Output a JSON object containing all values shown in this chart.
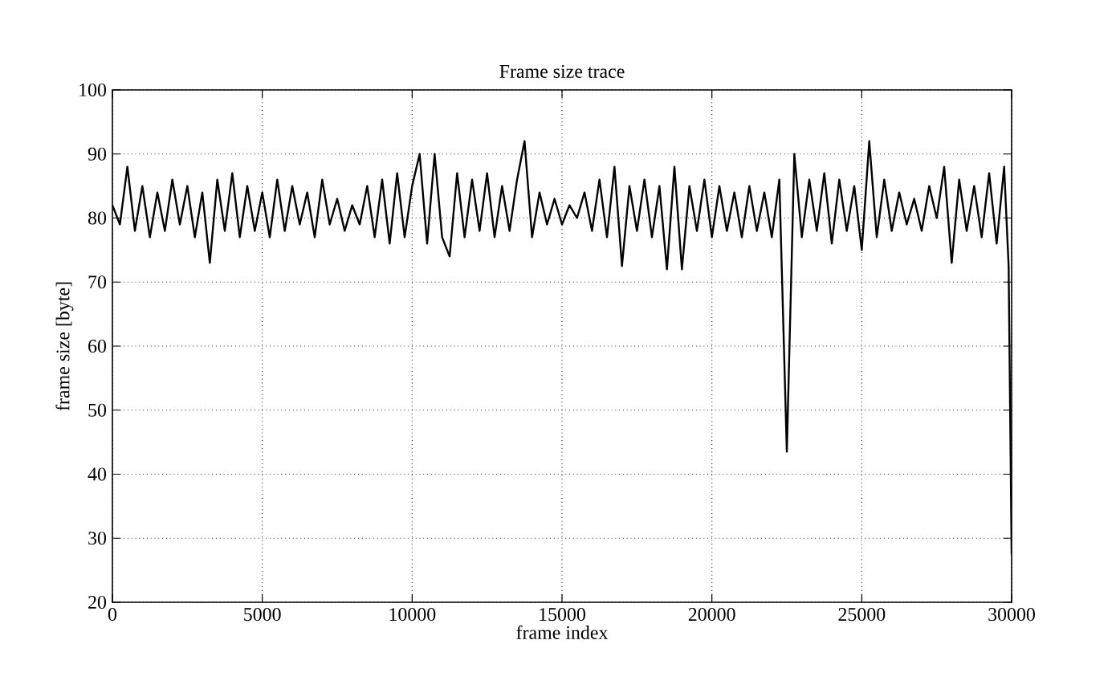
{
  "chart_data": {
    "type": "line",
    "title": "Frame size trace",
    "xlabel": "frame index",
    "ylabel": "frame size [byte]",
    "xlim": [
      0,
      30000
    ],
    "xticks": [
      0,
      5000,
      10000,
      15000,
      20000,
      25000,
      30000
    ],
    "ylim": [
      20,
      100
    ],
    "yticks": [
      20,
      30,
      40,
      50,
      60,
      70,
      80,
      90,
      100
    ],
    "grid": true,
    "marker": "none",
    "line_style": "solid",
    "x": [
      0,
      250,
      500,
      750,
      1000,
      1250,
      1500,
      1750,
      2000,
      2250,
      2500,
      2750,
      3000,
      3250,
      3500,
      3750,
      4000,
      4250,
      4500,
      4750,
      5000,
      5250,
      5500,
      5750,
      6000,
      6250,
      6500,
      6750,
      7000,
      7250,
      7500,
      7750,
      8000,
      8250,
      8500,
      8750,
      9000,
      9250,
      9500,
      9750,
      10000,
      10250,
      10500,
      10750,
      11000,
      11250,
      11500,
      11750,
      12000,
      12250,
      12500,
      12750,
      13000,
      13250,
      13500,
      13750,
      14000,
      14250,
      14500,
      14750,
      15000,
      15250,
      15500,
      15750,
      16000,
      16250,
      16500,
      16750,
      17000,
      17250,
      17500,
      17750,
      18000,
      18250,
      18500,
      18750,
      19000,
      19250,
      19500,
      19750,
      20000,
      20250,
      20500,
      20750,
      21000,
      21250,
      21500,
      21750,
      22000,
      22250,
      22500,
      22750,
      23000,
      23250,
      23500,
      23750,
      24000,
      24250,
      24500,
      24750,
      25000,
      25250,
      25500,
      25750,
      26000,
      26250,
      26500,
      26750,
      27000,
      27250,
      27500,
      27750,
      28000,
      28250,
      28500,
      28750,
      29000,
      29250,
      29500,
      29750,
      29900,
      30000
    ],
    "series": [
      {
        "color": "#000000",
        "values": [
          82,
          79,
          88,
          78,
          85,
          77,
          84,
          78,
          86,
          79,
          85,
          77,
          84,
          73,
          86,
          78,
          87,
          77,
          85,
          78,
          84,
          77,
          86,
          78,
          85,
          79,
          84,
          77,
          86,
          79,
          83,
          78,
          82,
          79,
          85,
          77,
          86,
          76,
          87,
          77,
          85,
          90,
          76,
          90,
          77,
          74,
          87,
          77,
          86,
          78,
          87,
          77,
          85,
          78,
          86,
          92,
          77,
          84,
          79,
          83,
          79,
          82,
          80,
          84,
          78,
          86,
          77,
          88,
          72.5,
          85,
          78,
          86,
          77,
          85,
          72,
          88,
          72,
          85,
          78,
          86,
          77,
          85,
          78,
          84,
          77,
          85,
          78,
          84,
          77,
          86,
          43.5,
          90,
          77,
          86,
          78,
          87,
          76,
          86,
          78,
          85,
          75,
          92,
          77,
          86,
          78,
          84,
          79,
          83,
          78,
          85,
          80,
          88,
          73,
          86,
          78,
          85,
          77,
          87,
          76,
          88,
          72.5,
          27.5
        ]
      }
    ]
  }
}
